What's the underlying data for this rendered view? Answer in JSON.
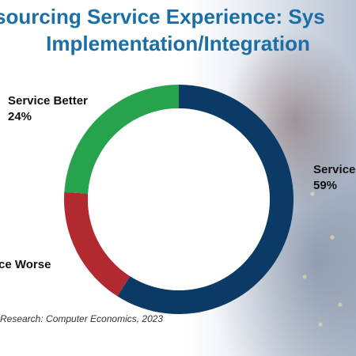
{
  "title_line1": "sourcing Service Experience: Sys",
  "title_line2": "Implementation/Integration",
  "source": "Research: Computer Economics, 2023",
  "chart_data": {
    "type": "pie",
    "categories": [
      "Service Better",
      "Service",
      "ce Worse"
    ],
    "values": [
      24,
      59,
      17
    ],
    "value_labels": [
      "24%",
      "59%",
      ""
    ],
    "colors": [
      "#27a34e",
      "#0c3a66",
      "#b22a2f"
    ],
    "donut": true
  }
}
